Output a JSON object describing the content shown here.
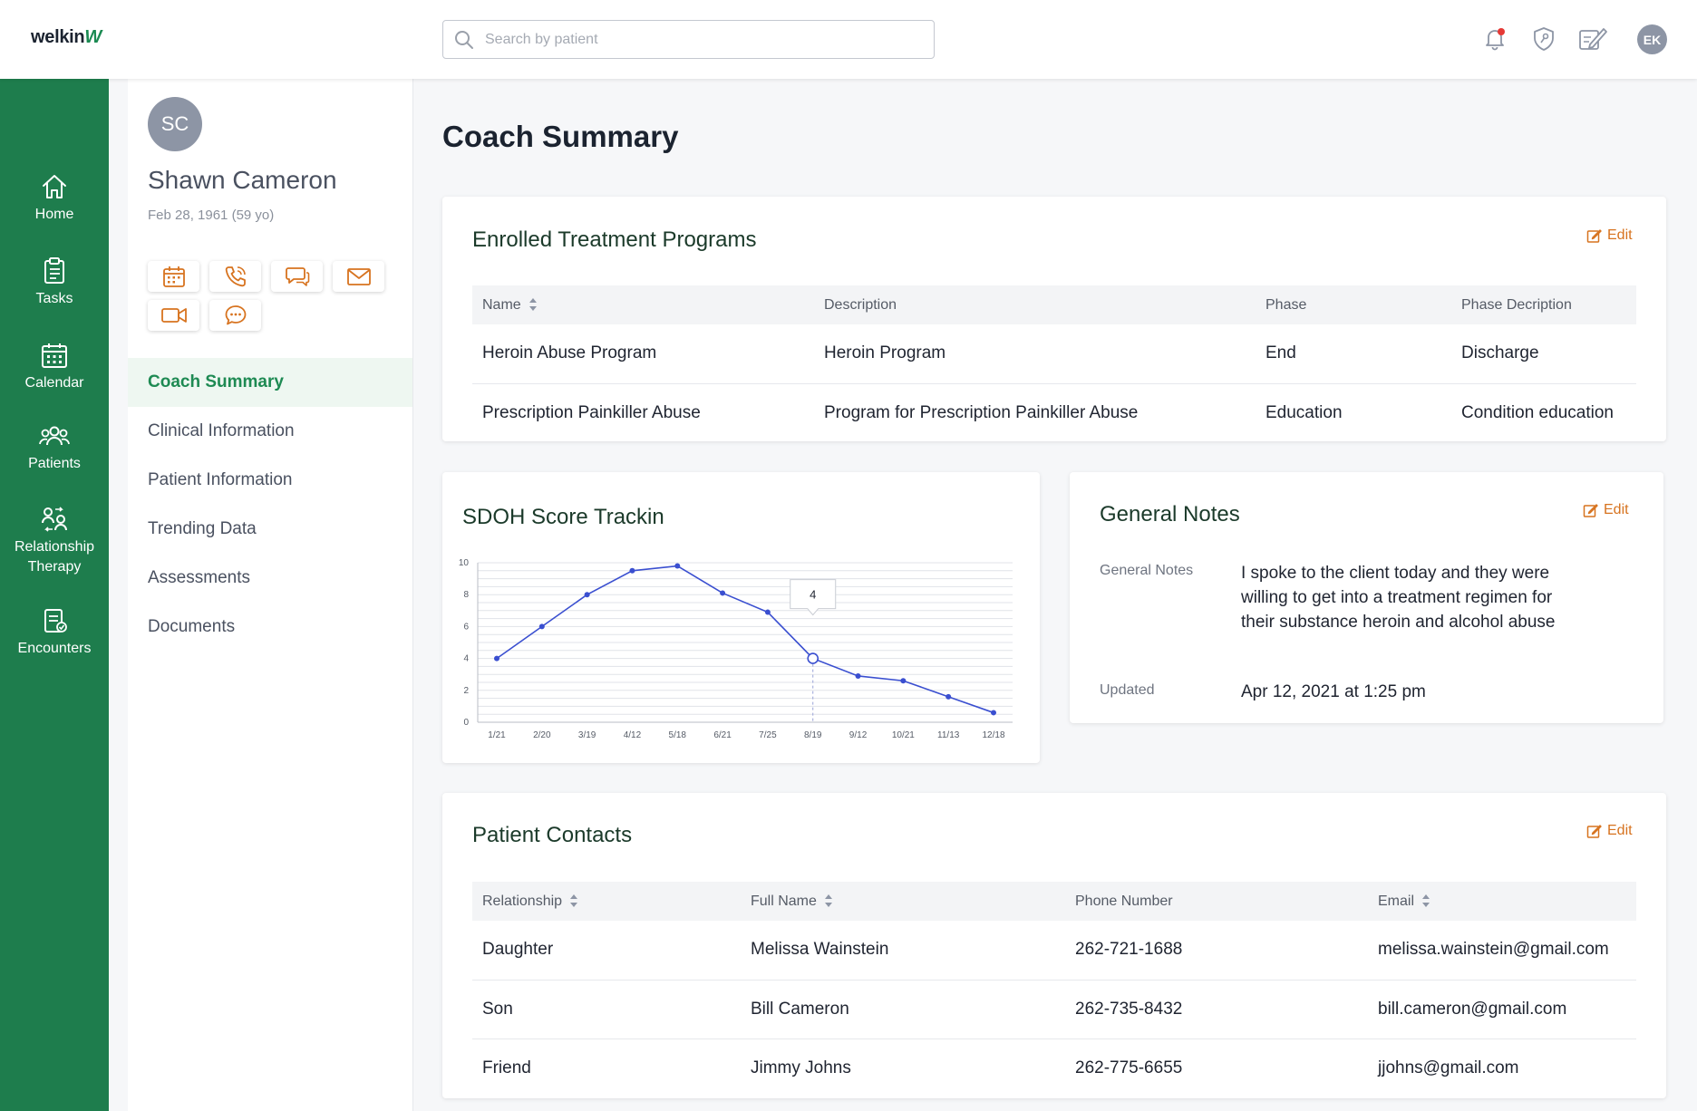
{
  "app": {
    "logo_text": "welkin",
    "logo_mark": "W",
    "brand_color": "#1e7d4d",
    "accent_color": "#d7731f"
  },
  "search": {
    "placeholder": "Search by patient",
    "value": ""
  },
  "topbar": {
    "icons": [
      "bell-icon",
      "shield-key-icon",
      "pen-note-icon"
    ],
    "user_initials": "EK"
  },
  "rail": {
    "items": [
      {
        "label": "Home",
        "icon": "home-icon"
      },
      {
        "label": "Tasks",
        "icon": "clipboard-icon"
      },
      {
        "label": "Calendar",
        "icon": "calendar-icon"
      },
      {
        "label": "Patients",
        "icon": "people-icon"
      },
      {
        "label": "Relationship Therapy",
        "label_line1": "Relationship",
        "label_line2": "Therapy",
        "icon": "relationship-icon"
      },
      {
        "label": "Encounters",
        "icon": "encounter-icon"
      }
    ]
  },
  "patient": {
    "initials": "SC",
    "name": "Shawn Cameron",
    "dob": "Feb 28, 1961 (59 yo)",
    "actions": [
      "calendar-icon",
      "phone-icon",
      "chat-icon",
      "mail-icon",
      "video-icon",
      "message-icon"
    ],
    "nav": [
      {
        "label": "Coach Summary",
        "active": true
      },
      {
        "label": "Clinical Information"
      },
      {
        "label": "Patient Information"
      },
      {
        "label": "Trending Data"
      },
      {
        "label": "Assessments"
      },
      {
        "label": "Documents"
      }
    ]
  },
  "main": {
    "title": "Coach Summary",
    "programs": {
      "title": "Enrolled Treatment Programs",
      "edit_label": "Edit",
      "headers": [
        "Name",
        "Description",
        "Phase",
        "Phase Decription"
      ],
      "rows": [
        [
          "Heroin Abuse Program",
          "Heroin Program",
          "End",
          "Discharge"
        ],
        [
          "Prescription Painkiller Abuse",
          "Program for Prescription Painkiller Abuse",
          "Education",
          "Condition education"
        ]
      ]
    },
    "sdoh": {
      "title": "SDOH Score Trackin"
    },
    "notes": {
      "title": "General Notes",
      "edit_label": "Edit",
      "notes_label": "General Notes",
      "notes_value": "I spoke to the client today and they were willing to get into a treatment regimen for their substance heroin and alcohol abuse",
      "updated_label": "Updated",
      "updated_value": "Apr 12, 2021 at 1:25 pm"
    },
    "contacts": {
      "title": "Patient Contacts",
      "edit_label": "Edit",
      "headers": [
        "Relationship",
        "Full Name",
        "Phone Number",
        "Email"
      ],
      "rows": [
        [
          "Daughter",
          "Melissa Wainstein",
          "262-721-1688",
          "melissa.wainstein@gmail.com"
        ],
        [
          "Son",
          "Bill Cameron",
          "262-735-8432",
          "bill.cameron@gmail.com"
        ],
        [
          "Friend",
          "Jimmy Johns",
          "262-775-6655",
          "jjohns@gmail.com"
        ]
      ]
    }
  },
  "chart_data": {
    "type": "line",
    "title": "SDOH Score Trackin",
    "categories": [
      "1/21",
      "2/20",
      "3/19",
      "4/12",
      "5/18",
      "6/21",
      "7/25",
      "8/19",
      "9/12",
      "10/21",
      "11/13",
      "12/18"
    ],
    "values": [
      4,
      6,
      8,
      9.5,
      9.8,
      8.1,
      6.9,
      4,
      2.9,
      2.6,
      1.6,
      0.6
    ],
    "ylim": [
      0,
      10
    ],
    "yticks": [
      0,
      2,
      4,
      6,
      8,
      10
    ],
    "grid": true,
    "series_color": "#3a4fd0",
    "tooltip": {
      "index": 7,
      "label": "4"
    }
  }
}
